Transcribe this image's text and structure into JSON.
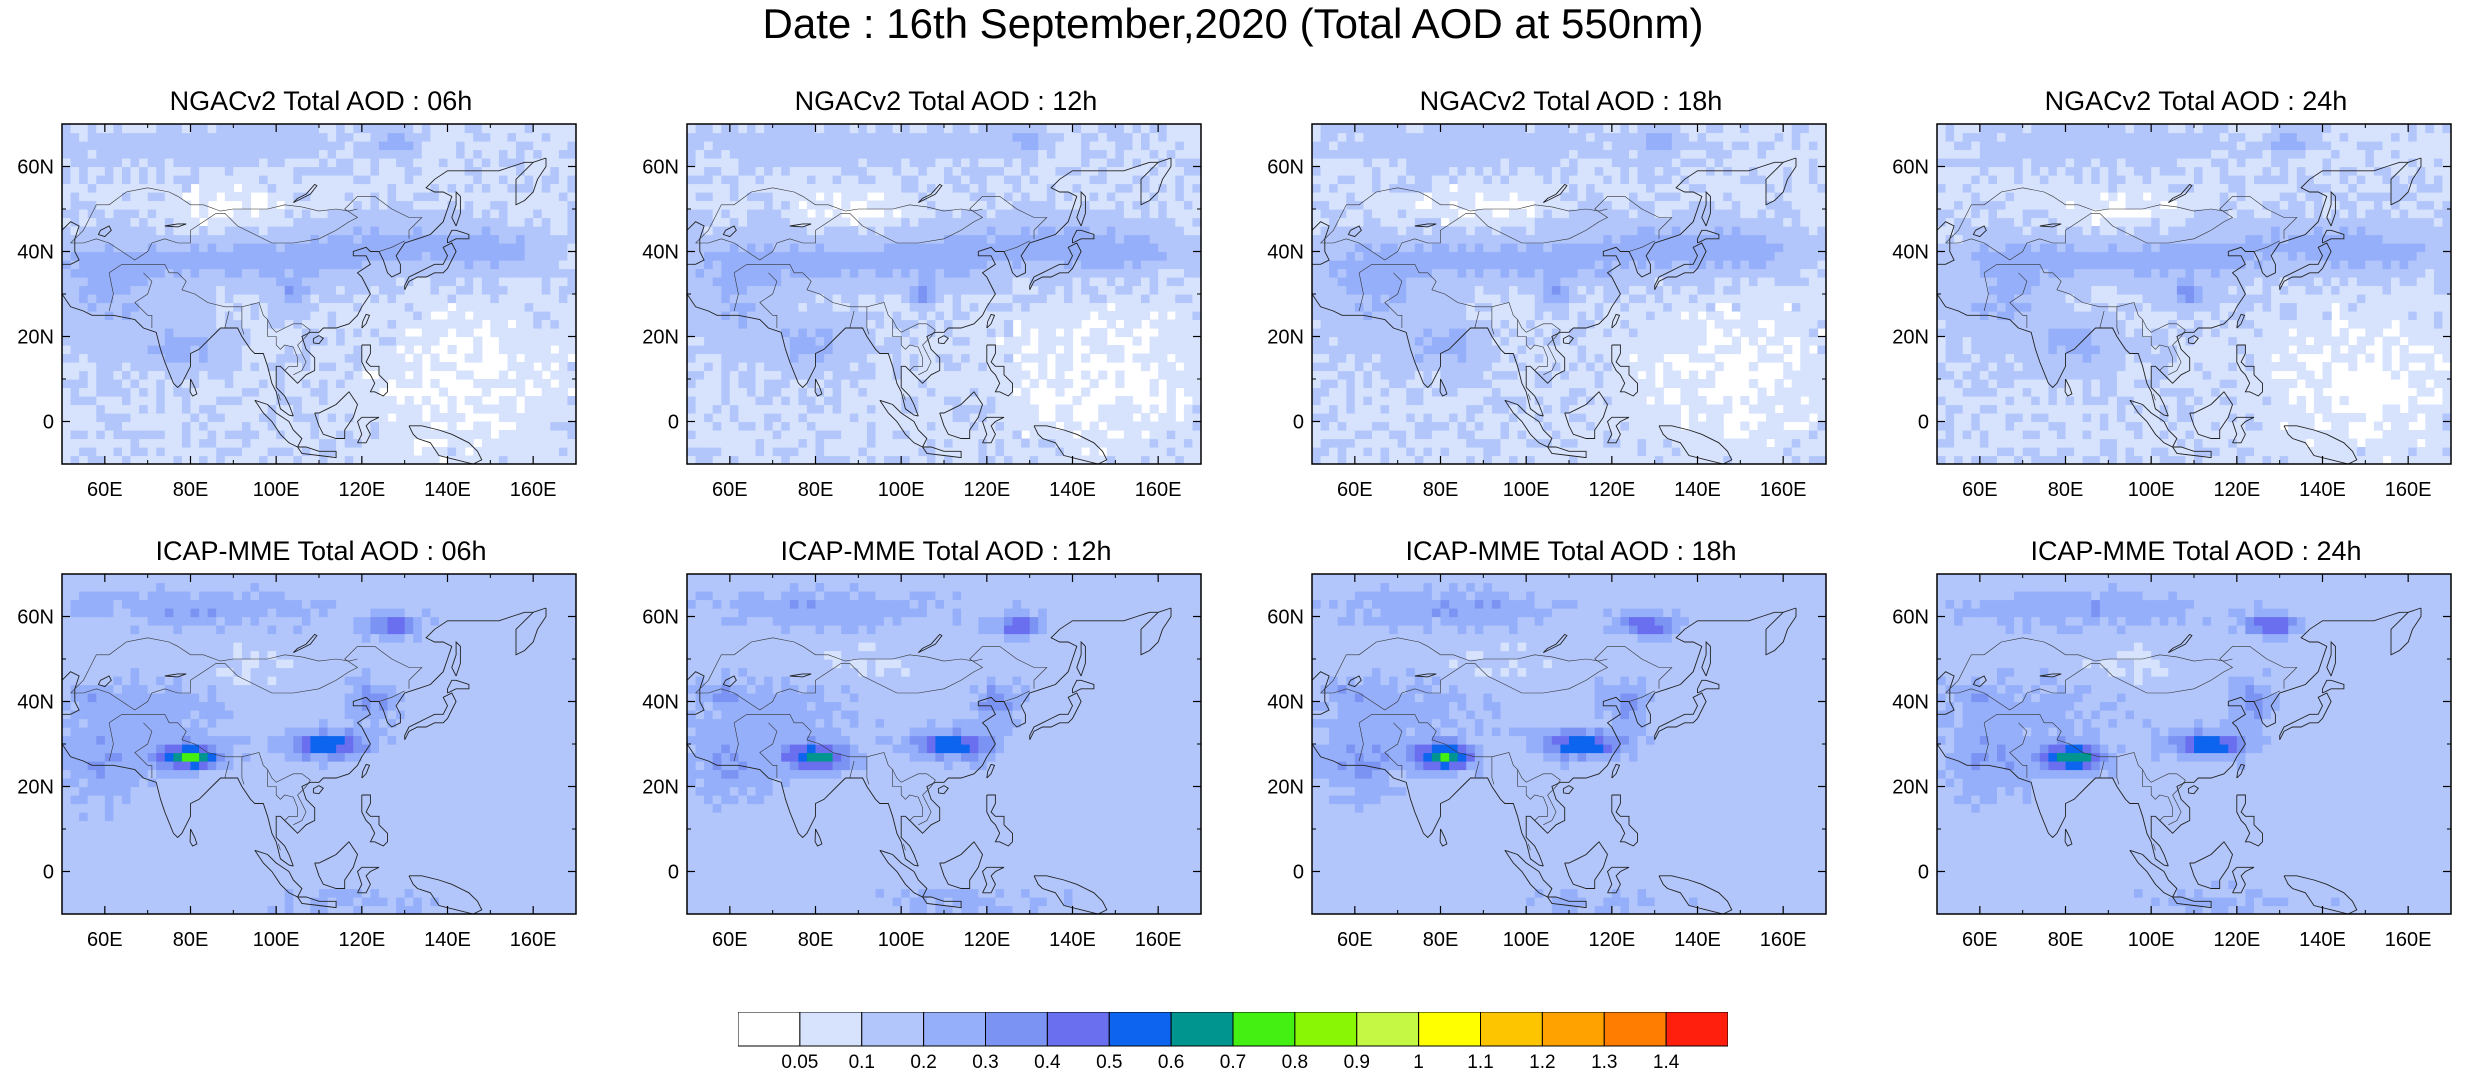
{
  "title": "Date : 16th September,2020 (Total AOD at 550nm)",
  "panels": [
    {
      "id": "ngac-06",
      "title": "NGACv2 Total AOD : 06h",
      "model": "NGACv2",
      "lead": "06h"
    },
    {
      "id": "ngac-12",
      "title": "NGACv2 Total AOD : 12h",
      "model": "NGACv2",
      "lead": "12h"
    },
    {
      "id": "ngac-18",
      "title": "NGACv2 Total AOD : 18h",
      "model": "NGACv2",
      "lead": "18h"
    },
    {
      "id": "ngac-24",
      "title": "NGACv2 Total AOD : 24h",
      "model": "NGACv2",
      "lead": "24h"
    },
    {
      "id": "icap-06",
      "title": "ICAP-MME Total AOD : 06h",
      "model": "ICAP-MME",
      "lead": "06h"
    },
    {
      "id": "icap-12",
      "title": "ICAP-MME Total AOD : 12h",
      "model": "ICAP-MME",
      "lead": "12h"
    },
    {
      "id": "icap-18",
      "title": "ICAP-MME Total AOD : 18h",
      "model": "ICAP-MME",
      "lead": "18h"
    },
    {
      "id": "icap-24",
      "title": "ICAP-MME Total AOD : 24h",
      "model": "ICAP-MME",
      "lead": "24h"
    }
  ],
  "lat_ticks": [
    "60N",
    "40N",
    "20N",
    "0"
  ],
  "lon_ticks": [
    "60E",
    "80E",
    "100E",
    "120E",
    "140E",
    "160E"
  ],
  "extent": {
    "lon": [
      50,
      170
    ],
    "lat": [
      -10,
      70
    ]
  },
  "colorbar": {
    "labels": [
      "0.05",
      "0.1",
      "0.2",
      "0.3",
      "0.4",
      "0.5",
      "0.6",
      "0.7",
      "0.8",
      "0.9",
      "1",
      "1.1",
      "1.2",
      "1.3",
      "1.4"
    ],
    "colors": [
      "#ffffff",
      "#d7e3fd",
      "#b2c6fb",
      "#95affa",
      "#7b93f2",
      "#6a6ff0",
      "#0d64ee",
      "#00968f",
      "#43f012",
      "#89f605",
      "#c4f845",
      "#ffff00",
      "#fdc400",
      "#ffa200",
      "#ff7d00",
      "#ff1f0c"
    ]
  }
}
